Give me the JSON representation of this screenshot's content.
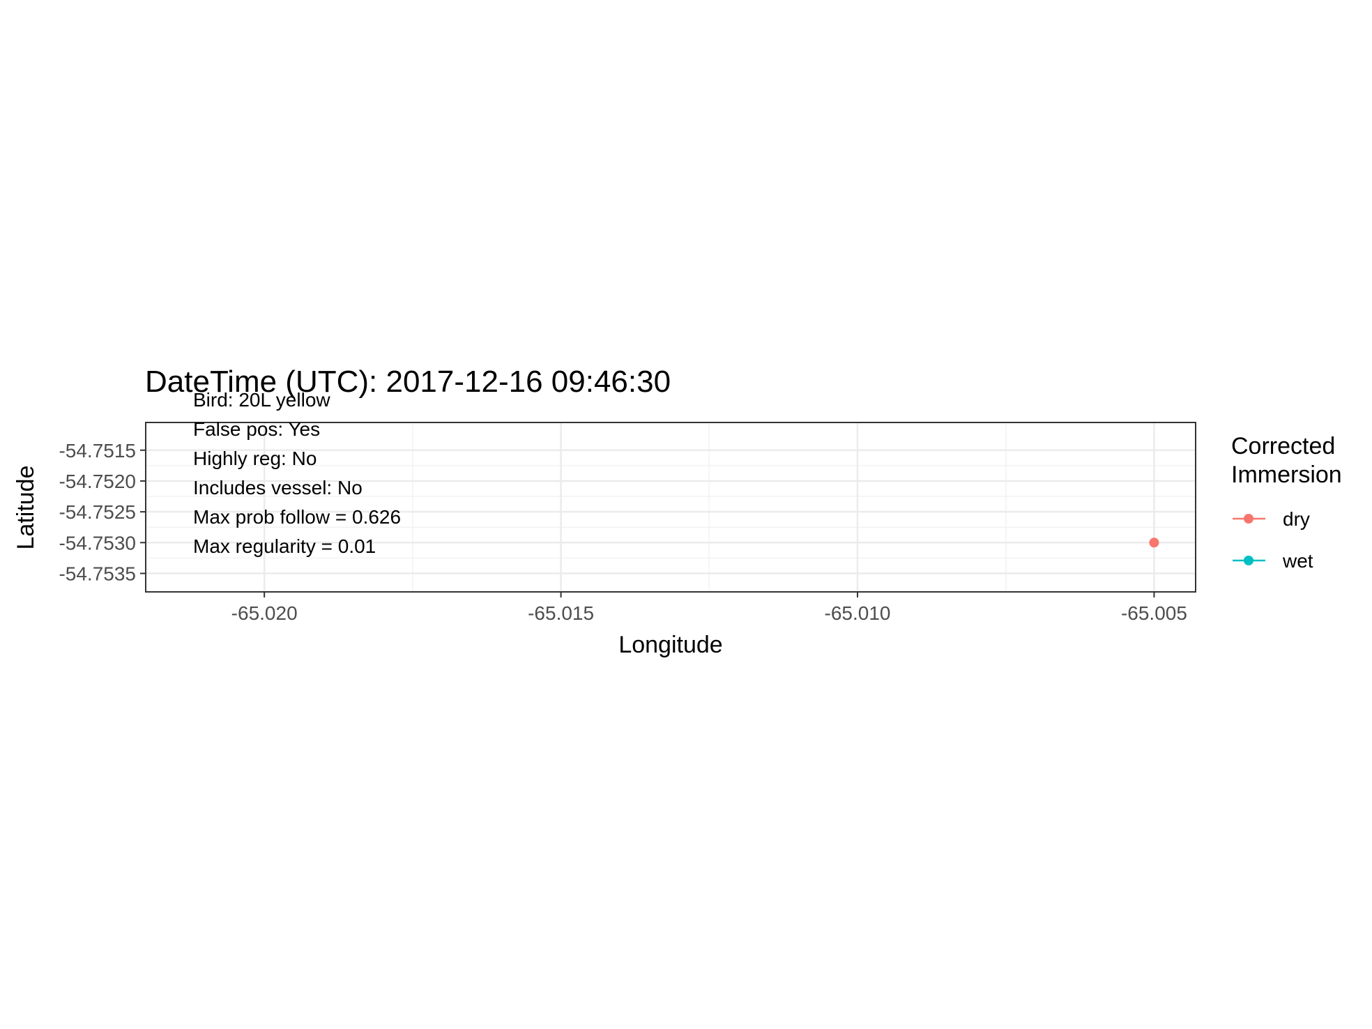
{
  "chart_data": {
    "type": "scatter",
    "title": "DateTime (UTC): 2017-12-16 09:46:30",
    "xlabel": "Longitude",
    "ylabel": "Latitude",
    "xlim": [
      -65.022,
      -65.0043
    ],
    "ylim": [
      -54.7538,
      -54.75105
    ],
    "xticks": [
      -65.02,
      -65.015,
      -65.01,
      -65.005
    ],
    "xtick_labels": [
      "-65.020",
      "-65.015",
      "-65.010",
      "-65.005"
    ],
    "yticks": [
      -54.7515,
      -54.752,
      -54.7525,
      -54.753,
      -54.7535
    ],
    "ytick_labels": [
      "-54.7515",
      "-54.7520",
      "-54.7525",
      "-54.7530",
      "-54.7535"
    ],
    "grid": true,
    "annotations": [
      "Bird: 20L yellow",
      "False pos: Yes",
      "Highly reg: No",
      "Includes vessel: No",
      "Max prob follow = 0.626",
      "Max regularity = 0.01"
    ],
    "legend": {
      "title_lines": [
        "Corrected",
        "Immersion"
      ],
      "placement": "right",
      "items": [
        {
          "label": "dry",
          "color": "#F8766D"
        },
        {
          "label": "wet",
          "color": "#00BFC4"
        }
      ]
    },
    "series": [
      {
        "name": "dry",
        "color": "#F8766D",
        "points": [
          {
            "x": -65.005,
            "y": -54.753
          }
        ]
      },
      {
        "name": "wet",
        "color": "#00BFC4",
        "points": []
      }
    ]
  }
}
